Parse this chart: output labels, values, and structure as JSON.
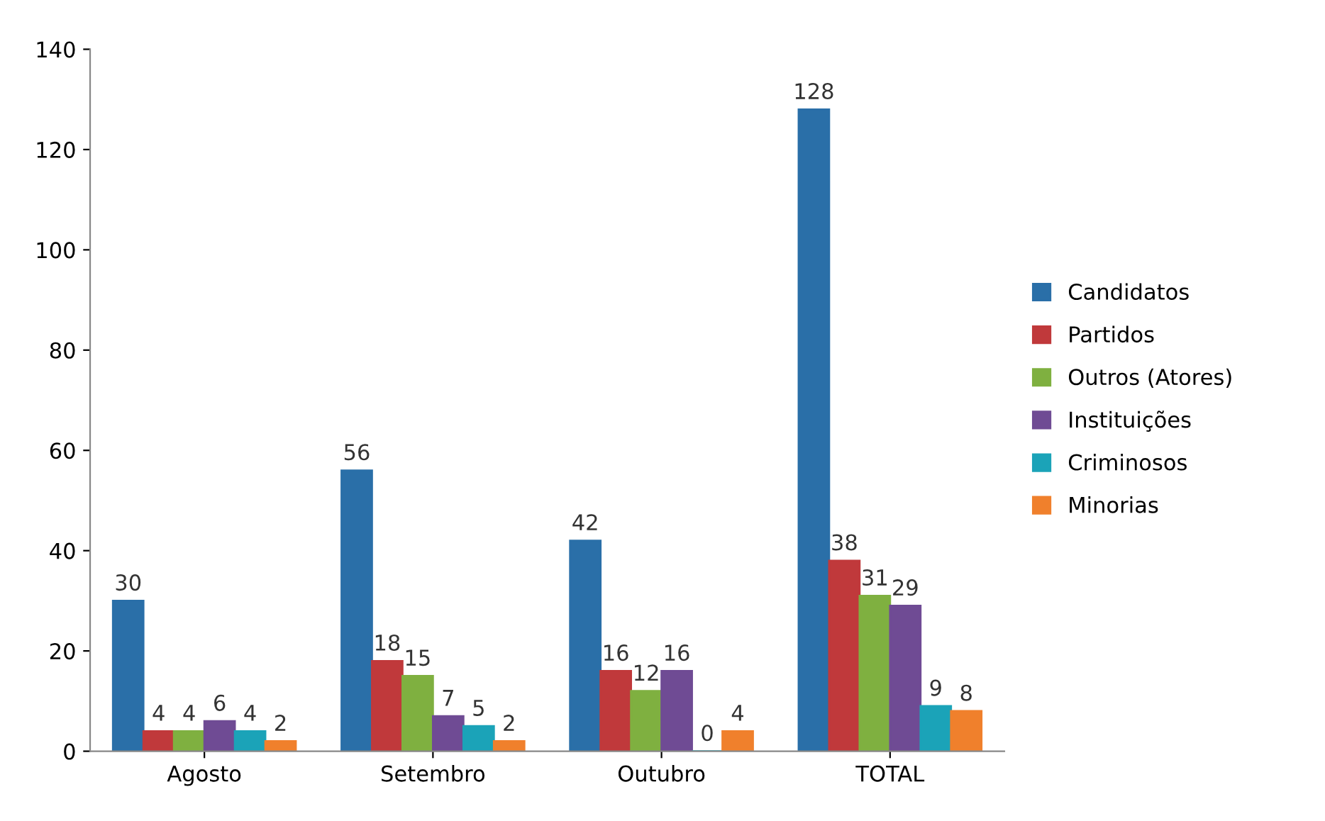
{
  "chart_data": {
    "type": "bar",
    "categories": [
      "Agosto",
      "Setembro",
      "Outubro",
      "TOTAL"
    ],
    "series": [
      {
        "name": "Candidatos",
        "color": "#2a6fa8",
        "values": [
          30,
          56,
          42,
          128
        ]
      },
      {
        "name": "Partidos",
        "color": "#c0393b",
        "values": [
          4,
          18,
          16,
          38
        ]
      },
      {
        "name": "Outros (Atores)",
        "color": "#7fb040",
        "values": [
          4,
          15,
          12,
          31
        ]
      },
      {
        "name": "Instituições",
        "color": "#6f4b94",
        "values": [
          6,
          7,
          16,
          29
        ]
      },
      {
        "name": "Criminosos",
        "color": "#1ba3b8",
        "values": [
          4,
          5,
          0,
          9
        ]
      },
      {
        "name": "Minorias",
        "color": "#f0802c",
        "values": [
          2,
          2,
          4,
          8
        ]
      }
    ],
    "ylim": [
      0,
      140
    ],
    "yticks": [
      0,
      20,
      40,
      60,
      80,
      100,
      120,
      140
    ],
    "data_labels": true,
    "legend": "right",
    "grid": false
  }
}
